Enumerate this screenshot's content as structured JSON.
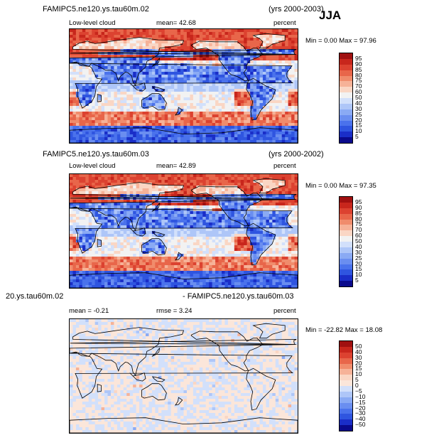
{
  "season": "JJA",
  "panels": [
    {
      "case": "FAMIPC5.ne120.ys.tau60m.02",
      "years": "(yrs 2000-2003)",
      "field": "Low-level cloud",
      "stat": "mean=   42.68",
      "units": "percent",
      "minmax": "Min =    0.00  Max =   97.96"
    },
    {
      "case": "FAMIPC5.ne120.ys.tau60m.03",
      "years": "(yrs 2000-2002)",
      "field": "Low-level cloud",
      "stat": "mean=   42.89",
      "units": "percent",
      "minmax": "Min =    0.00  Max =   97.35"
    },
    {
      "case_a": "20.ys.tau60m.02",
      "case_b": "- FAMIPC5.ne120.ys.tau60m.03",
      "stat_mean": "mean =   -0.21",
      "stat_rmse": "rmse =   3.24",
      "units": "percent",
      "minmax": "Min = -22.82  Max =   18.08"
    }
  ],
  "chart_data": [
    {
      "type": "heatmap",
      "title": "FAMIPC5.ne120.ys.tau60m.02",
      "subtitle": "Low-level cloud",
      "units": "percent",
      "mean": 42.68,
      "min": 0.0,
      "max": 97.96,
      "levels": [
        5,
        10,
        15,
        20,
        25,
        30,
        40,
        50,
        60,
        70,
        75,
        80,
        85,
        90,
        95
      ],
      "colors": [
        "#0a0a8c",
        "#1a2ec8",
        "#2f55e0",
        "#4a72ec",
        "#6a8ef0",
        "#8aaaf4",
        "#aec6f8",
        "#d2e0fb",
        "#f2f2f2",
        "#fad6c4",
        "#f6b298",
        "#f08c6c",
        "#e8664a",
        "#dc4230",
        "#c8261c",
        "#a01010"
      ]
    },
    {
      "type": "heatmap",
      "title": "FAMIPC5.ne120.ys.tau60m.03",
      "subtitle": "Low-level cloud",
      "units": "percent",
      "mean": 42.89,
      "min": 0.0,
      "max": 97.35,
      "levels": [
        5,
        10,
        15,
        20,
        25,
        30,
        40,
        50,
        60,
        70,
        75,
        80,
        85,
        90,
        95
      ],
      "colors": [
        "#0a0a8c",
        "#1a2ec8",
        "#2f55e0",
        "#4a72ec",
        "#6a8ef0",
        "#8aaaf4",
        "#aec6f8",
        "#d2e0fb",
        "#f2f2f2",
        "#fad6c4",
        "#f6b298",
        "#f08c6c",
        "#e8664a",
        "#dc4230",
        "#c8261c",
        "#a01010"
      ]
    },
    {
      "type": "heatmap",
      "title": "20.ys.tau60m.02 - FAMIPC5.ne120.ys.tau60m.03",
      "units": "percent",
      "mean": -0.21,
      "rmse": 3.24,
      "min": -22.82,
      "max": 18.08,
      "levels": [
        -50,
        -40,
        -30,
        -20,
        -15,
        -10,
        -5,
        0,
        5,
        10,
        15,
        20,
        30,
        40,
        50
      ],
      "colors": [
        "#0a0a8c",
        "#1a2ec8",
        "#2f55e0",
        "#4a72ec",
        "#6a8ef0",
        "#8aaaf4",
        "#aec6f8",
        "#d2e0fb",
        "#fbe6da",
        "#fad6c4",
        "#f6b298",
        "#f08c6c",
        "#e8664a",
        "#dc4230",
        "#c8261c",
        "#a01010"
      ]
    }
  ]
}
